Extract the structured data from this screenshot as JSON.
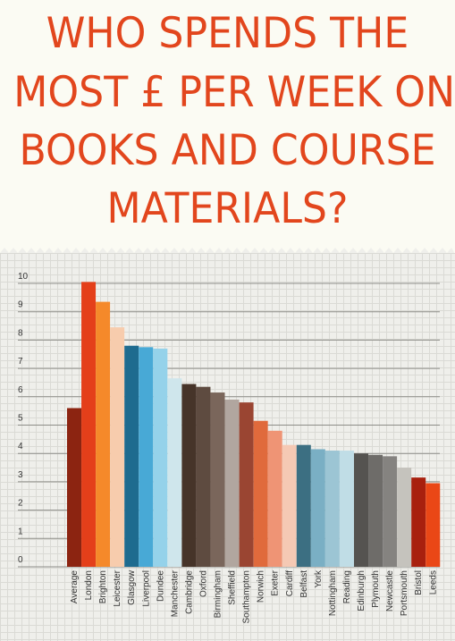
{
  "title_lines": [
    "WHO SPENDS THE",
    "MOST £ PER WEEK ON",
    "BOOKS AND COURSE",
    "MATERIALS?"
  ],
  "chart_data": {
    "type": "bar",
    "title": "WHO SPENDS THE MOST £ PER WEEK ON BOOKS AND COURSE MATERIALS?",
    "xlabel": "",
    "ylabel": "",
    "ylim": [
      0,
      10
    ],
    "yticks": [
      "0",
      "1",
      "2",
      "3",
      "4",
      "5",
      "6",
      "7",
      "8",
      "9",
      "10"
    ],
    "grid": true,
    "categories": [
      "Average",
      "London",
      "Brighton",
      "Leicester",
      "Glasgow",
      "Liverpool",
      "Dundee",
      "Manchester",
      "Cambridge",
      "Oxford",
      "Birmingham",
      "Sheffield",
      "Southampton",
      "Norwich",
      "Exeter",
      "Cardiff",
      "Belfast",
      "York",
      "Nottingham",
      "Reading",
      "Edinburgh",
      "Plymouth",
      "Newcastle",
      "Portsmouth",
      "Bristol",
      "Leeds"
    ],
    "values": [
      5.6,
      10.05,
      9.35,
      8.45,
      7.8,
      7.75,
      7.7,
      6.65,
      6.45,
      6.35,
      6.15,
      5.9,
      5.8,
      5.15,
      4.8,
      4.3,
      4.3,
      4.15,
      4.1,
      4.1,
      4.0,
      3.95,
      3.9,
      3.5,
      3.15,
      2.95
    ],
    "colors": [
      "#8c2411",
      "#e43f1a",
      "#f5892a",
      "#f7ccad",
      "#1e6b8f",
      "#48a9d6",
      "#95d2ea",
      "#cfe6ec",
      "#463429",
      "#5e4b40",
      "#7a665b",
      "#b1a69f",
      "#9a4532",
      "#e06a3c",
      "#ef9475",
      "#f5c9b4",
      "#3c6f82",
      "#7aafc4",
      "#9cc5d4",
      "#c0dde6",
      "#555350",
      "#6e6c69",
      "#858380",
      "#c5c3bd",
      "#a8200e",
      "#ea4716"
    ]
  }
}
